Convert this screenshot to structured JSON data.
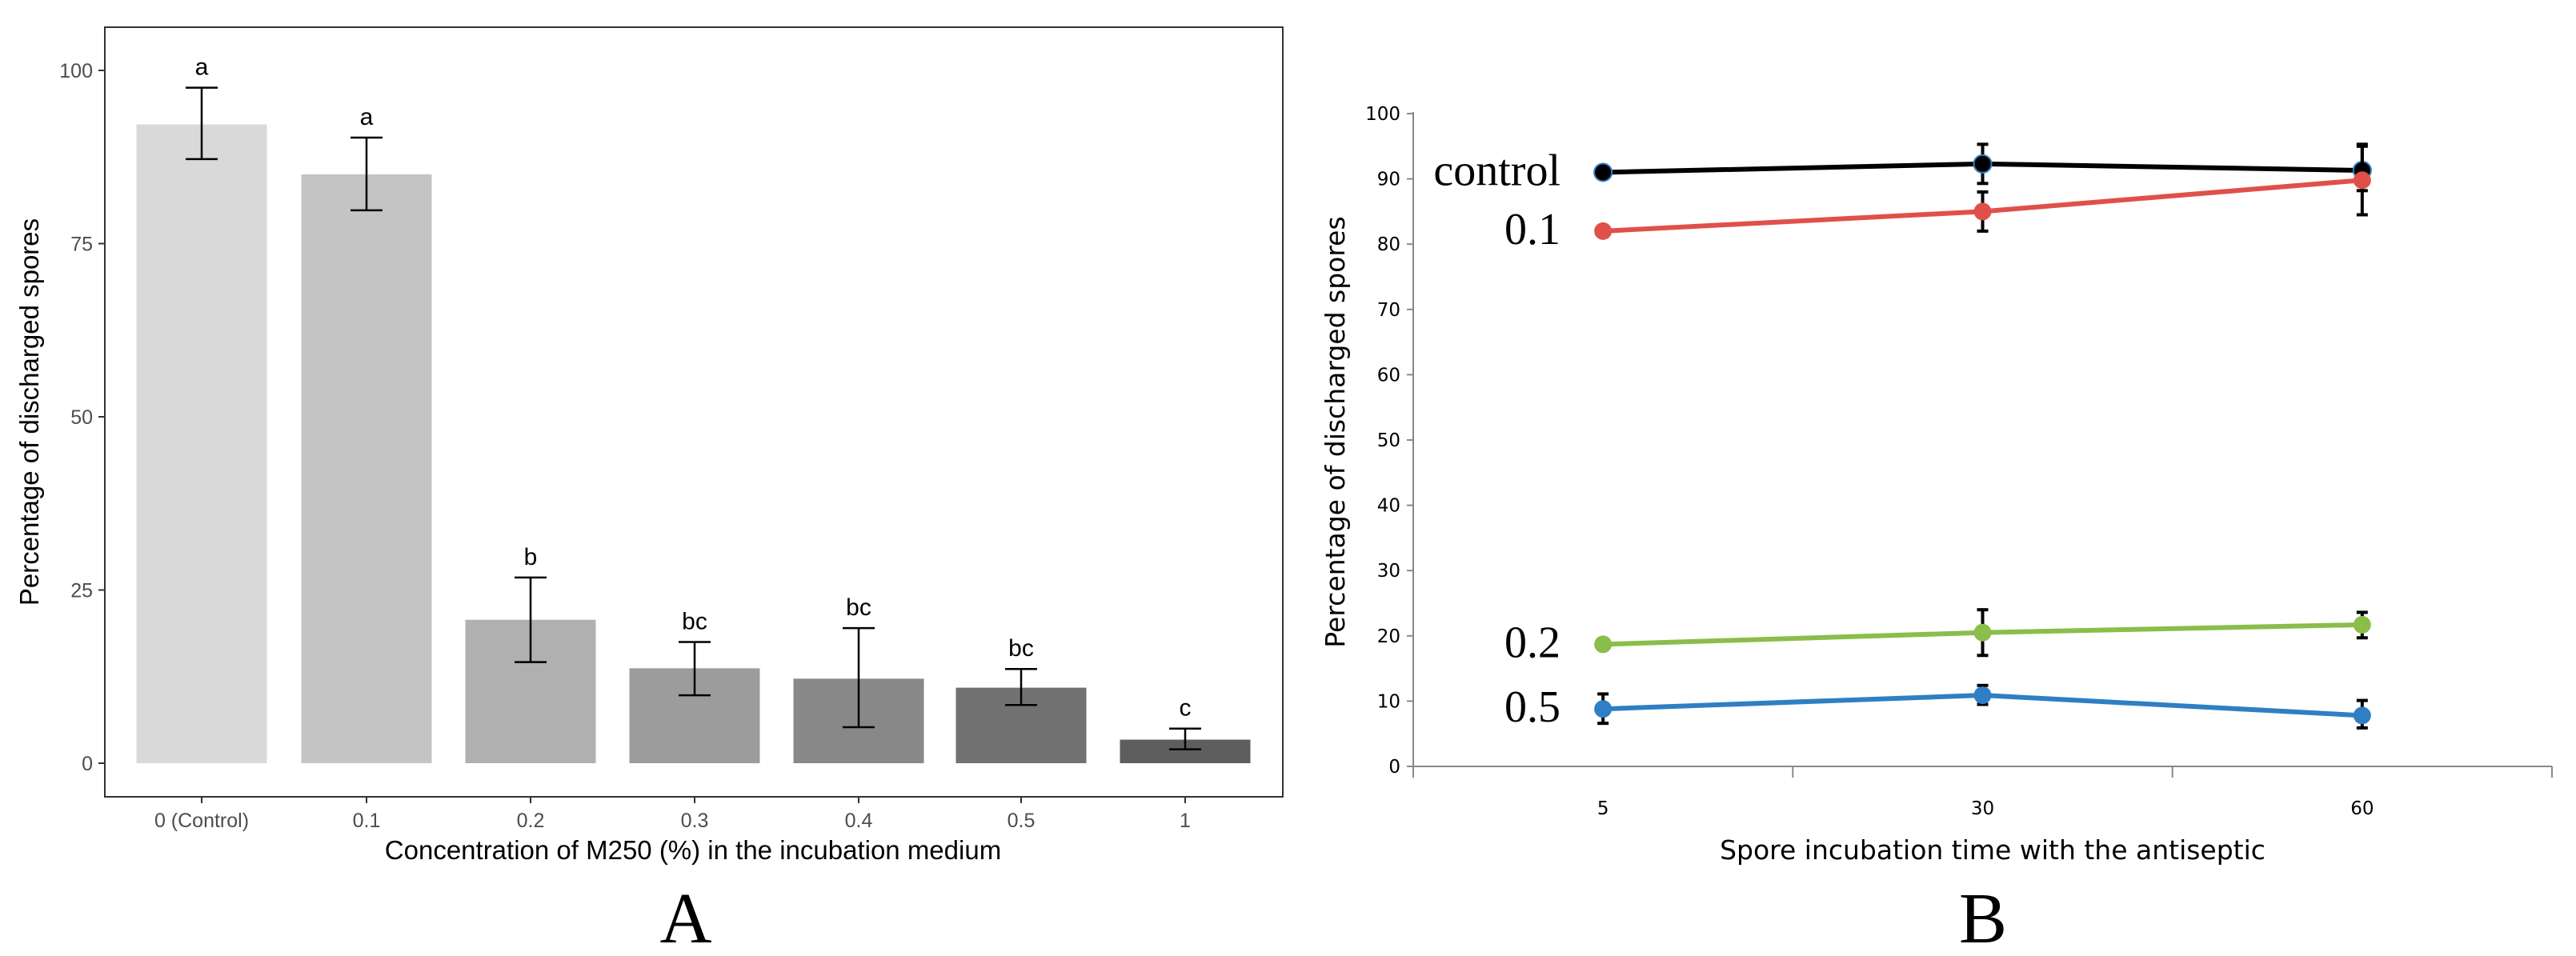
{
  "chart_data": [
    {
      "type": "bar",
      "panel_label": "A",
      "title": "",
      "xlabel": "Concentration of M250 (%) in the incubation medium",
      "ylabel": "Percentage of discharged spores",
      "ylim": [
        -5,
        106
      ],
      "yticks": [
        0,
        25,
        50,
        75,
        100
      ],
      "grid": false,
      "categories": [
        "0 (Control)",
        "0.1",
        "0.2",
        "0.3",
        "0.4",
        "0.5",
        "1"
      ],
      "values": [
        92.2,
        85.0,
        20.7,
        13.7,
        12.2,
        10.9,
        3.4
      ],
      "error_low": [
        87.2,
        79.8,
        14.6,
        9.8,
        5.2,
        8.4,
        2.0
      ],
      "error_high": [
        97.5,
        90.3,
        26.8,
        17.5,
        19.5,
        13.6,
        5.0
      ],
      "significance_letters": [
        "a",
        "a",
        "b",
        "bc",
        "bc",
        "bc",
        "c"
      ],
      "bar_colors": [
        "#d9d9d9",
        "#c4c4c4",
        "#b0b0b0",
        "#9c9c9c",
        "#888888",
        "#727272",
        "#5e5e5e"
      ]
    },
    {
      "type": "line",
      "panel_label": "B",
      "title": "",
      "xlabel": "Spore incubation time with the antiseptic",
      "ylabel": "Percentage of discharged spores",
      "ylim": [
        0,
        100
      ],
      "yticks": [
        0,
        10,
        20,
        30,
        40,
        50,
        60,
        70,
        80,
        90,
        100
      ],
      "grid": false,
      "categories": [
        "5",
        "30",
        "60"
      ],
      "series": [
        {
          "name": "control",
          "color": "#000000",
          "values": [
            91.0,
            92.3,
            91.3
          ],
          "error_low": [
            90.5,
            89.3,
            88.2
          ],
          "error_high": [
            91.5,
            95.3,
            95.3
          ]
        },
        {
          "name": "0.1",
          "color": "#e0504a",
          "values": [
            82.0,
            85.0,
            89.8
          ],
          "error_low": [
            81.5,
            82.0,
            84.5
          ],
          "error_high": [
            82.5,
            88.0,
            95.0
          ]
        },
        {
          "name": "0.2",
          "color": "#8bbd4a",
          "values": [
            18.7,
            20.5,
            21.7
          ],
          "error_low": [
            18.2,
            17.0,
            19.7
          ],
          "error_high": [
            19.2,
            24.0,
            23.6
          ]
        },
        {
          "name": "0.5",
          "color": "#2e7fc4",
          "values": [
            8.8,
            10.9,
            7.8
          ],
          "error_low": [
            6.6,
            9.5,
            5.9
          ],
          "error_high": [
            11.1,
            12.4,
            10.1
          ]
        }
      ]
    }
  ]
}
